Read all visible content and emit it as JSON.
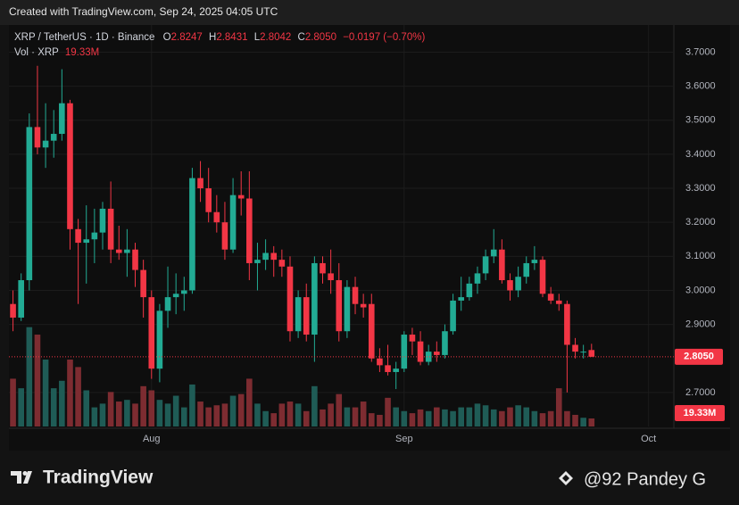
{
  "banner": "Created with TradingView.com, Sep 24, 2025 04:05 UTC",
  "chart_data": {
    "type": "candlestick",
    "symbol": "XRP / TetherUS · 1D · Binance",
    "ohlc_names": {
      "open": "O",
      "high": "H",
      "low": "L",
      "close": "C"
    },
    "last_labels": {
      "open": "2.8247",
      "high": "2.8431",
      "low": "2.8042",
      "close": "2.8050"
    },
    "change": "−0.0197 (−0.70%)",
    "volume_title": "Vol · XRP",
    "volume_label": "19.33M",
    "up_color": "#22ab94",
    "down_color": "#f23645",
    "volume_up_color": "#1f5c56",
    "volume_down_color": "#7d2c31",
    "open": [
      2.96,
      2.92,
      3.03,
      3.48,
      3.42,
      3.44,
      3.46,
      3.55,
      3.18,
      3.14,
      3.15,
      3.17,
      3.24,
      3.12,
      3.11,
      3.12,
      3.06,
      2.98,
      2.77,
      2.94,
      2.98,
      2.99,
      3.0,
      3.33,
      3.3,
      3.23,
      3.2,
      3.12,
      3.28,
      3.27,
      3.08,
      3.09,
      3.11,
      3.09,
      3.07,
      2.88,
      2.98,
      2.87,
      3.08,
      3.05,
      3.03,
      2.88,
      3.01,
      2.96,
      2.96,
      2.8,
      2.78,
      2.76,
      2.77,
      2.87,
      2.85,
      2.79,
      2.82,
      2.81,
      2.88,
      2.97,
      2.98,
      3.02,
      3.05,
      3.1,
      3.12,
      3.03,
      3.0,
      3.04,
      3.08,
      3.09,
      2.99,
      2.97,
      2.96,
      2.84,
      2.82,
      2.8247
    ],
    "high": [
      3.0,
      3.05,
      3.52,
      3.66,
      3.55,
      3.53,
      3.65,
      3.56,
      3.21,
      3.25,
      3.24,
      3.26,
      3.32,
      3.19,
      3.18,
      3.14,
      3.09,
      3.0,
      2.96,
      3.07,
      3.05,
      3.04,
      3.36,
      3.38,
      3.36,
      3.28,
      3.26,
      3.33,
      3.35,
      3.35,
      3.14,
      3.15,
      3.13,
      3.12,
      3.1,
      3.0,
      3.02,
      3.1,
      3.1,
      3.12,
      3.08,
      3.03,
      3.04,
      2.99,
      2.99,
      2.83,
      2.84,
      2.79,
      2.88,
      2.89,
      2.88,
      2.84,
      2.85,
      2.9,
      2.99,
      3.04,
      3.04,
      3.07,
      3.12,
      3.18,
      3.15,
      3.05,
      3.07,
      3.1,
      3.13,
      3.1,
      3.01,
      2.99,
      2.97,
      2.86,
      2.84,
      2.8431
    ],
    "low": [
      2.88,
      2.91,
      3.0,
      3.4,
      3.36,
      3.39,
      3.44,
      3.12,
      2.96,
      3.02,
      3.08,
      3.12,
      3.08,
      3.09,
      3.04,
      3.01,
      2.92,
      2.74,
      2.73,
      2.89,
      2.93,
      2.94,
      2.99,
      3.26,
      3.2,
      3.17,
      3.09,
      3.11,
      3.22,
      3.03,
      3.0,
      3.06,
      3.04,
      3.04,
      2.85,
      2.86,
      2.85,
      2.79,
      3.02,
      2.99,
      2.85,
      2.86,
      2.93,
      2.92,
      2.79,
      2.76,
      2.75,
      2.71,
      2.76,
      2.81,
      2.78,
      2.78,
      2.79,
      2.8,
      2.87,
      2.94,
      2.97,
      2.99,
      3.03,
      3.08,
      3.02,
      2.97,
      2.98,
      3.02,
      3.06,
      2.98,
      2.96,
      2.94,
      2.7,
      2.8,
      2.8,
      2.8042
    ],
    "close": [
      2.92,
      3.03,
      3.48,
      3.42,
      3.44,
      3.46,
      3.55,
      3.18,
      3.14,
      3.15,
      3.17,
      3.24,
      3.12,
      3.11,
      3.12,
      3.06,
      2.98,
      2.77,
      2.94,
      2.98,
      2.99,
      3.0,
      3.33,
      3.3,
      3.23,
      3.2,
      3.12,
      3.28,
      3.27,
      3.08,
      3.09,
      3.11,
      3.09,
      3.07,
      2.88,
      2.98,
      2.87,
      3.08,
      3.05,
      3.03,
      2.88,
      3.01,
      2.96,
      2.95,
      2.8,
      2.78,
      2.76,
      2.77,
      2.87,
      2.85,
      2.79,
      2.82,
      2.81,
      2.88,
      2.97,
      2.98,
      3.02,
      3.05,
      3.1,
      3.12,
      3.03,
      3.0,
      3.04,
      3.08,
      3.09,
      2.99,
      2.97,
      2.96,
      2.84,
      2.82,
      2.82,
      2.805
    ],
    "volume": [
      115,
      92,
      239,
      221,
      161,
      92,
      110,
      161,
      143,
      87,
      46,
      55,
      83,
      60,
      64,
      55,
      97,
      87,
      64,
      55,
      74,
      46,
      101,
      60,
      46,
      51,
      55,
      74,
      78,
      115,
      55,
      37,
      32,
      55,
      60,
      55,
      37,
      97,
      41,
      55,
      78,
      46,
      46,
      60,
      32,
      28,
      69,
      46,
      37,
      32,
      41,
      37,
      46,
      41,
      37,
      46,
      46,
      55,
      51,
      41,
      37,
      46,
      51,
      46,
      37,
      32,
      37,
      92,
      37,
      28,
      21,
      19.33
    ],
    "xlim": [
      -0.5,
      81.1
    ],
    "xticks": [
      {
        "value": 17,
        "label": "Aug"
      },
      {
        "value": 48,
        "label": "Sep"
      },
      {
        "value": 78,
        "label": "Oct"
      }
    ],
    "ylim": [
      2.6,
      3.78
    ],
    "yticks": [
      {
        "value": 2.7,
        "label": "2.7000"
      },
      {
        "value": 2.9,
        "label": "2.9000"
      },
      {
        "value": 3.0,
        "label": "3.0000"
      },
      {
        "value": 3.1,
        "label": "3.1000"
      },
      {
        "value": 3.2,
        "label": "3.2000"
      },
      {
        "value": 3.3,
        "label": "3.3000"
      },
      {
        "value": 3.4,
        "label": "3.4000"
      },
      {
        "value": 3.5,
        "label": "3.5000"
      },
      {
        "value": 3.6,
        "label": "3.6000"
      },
      {
        "value": 3.7,
        "label": "3.7000"
      }
    ],
    "y2lim": [
      0,
      966
    ],
    "grid": true
  },
  "footer": {
    "brand": "TradingView",
    "watermark": "@92 Pandey G"
  }
}
